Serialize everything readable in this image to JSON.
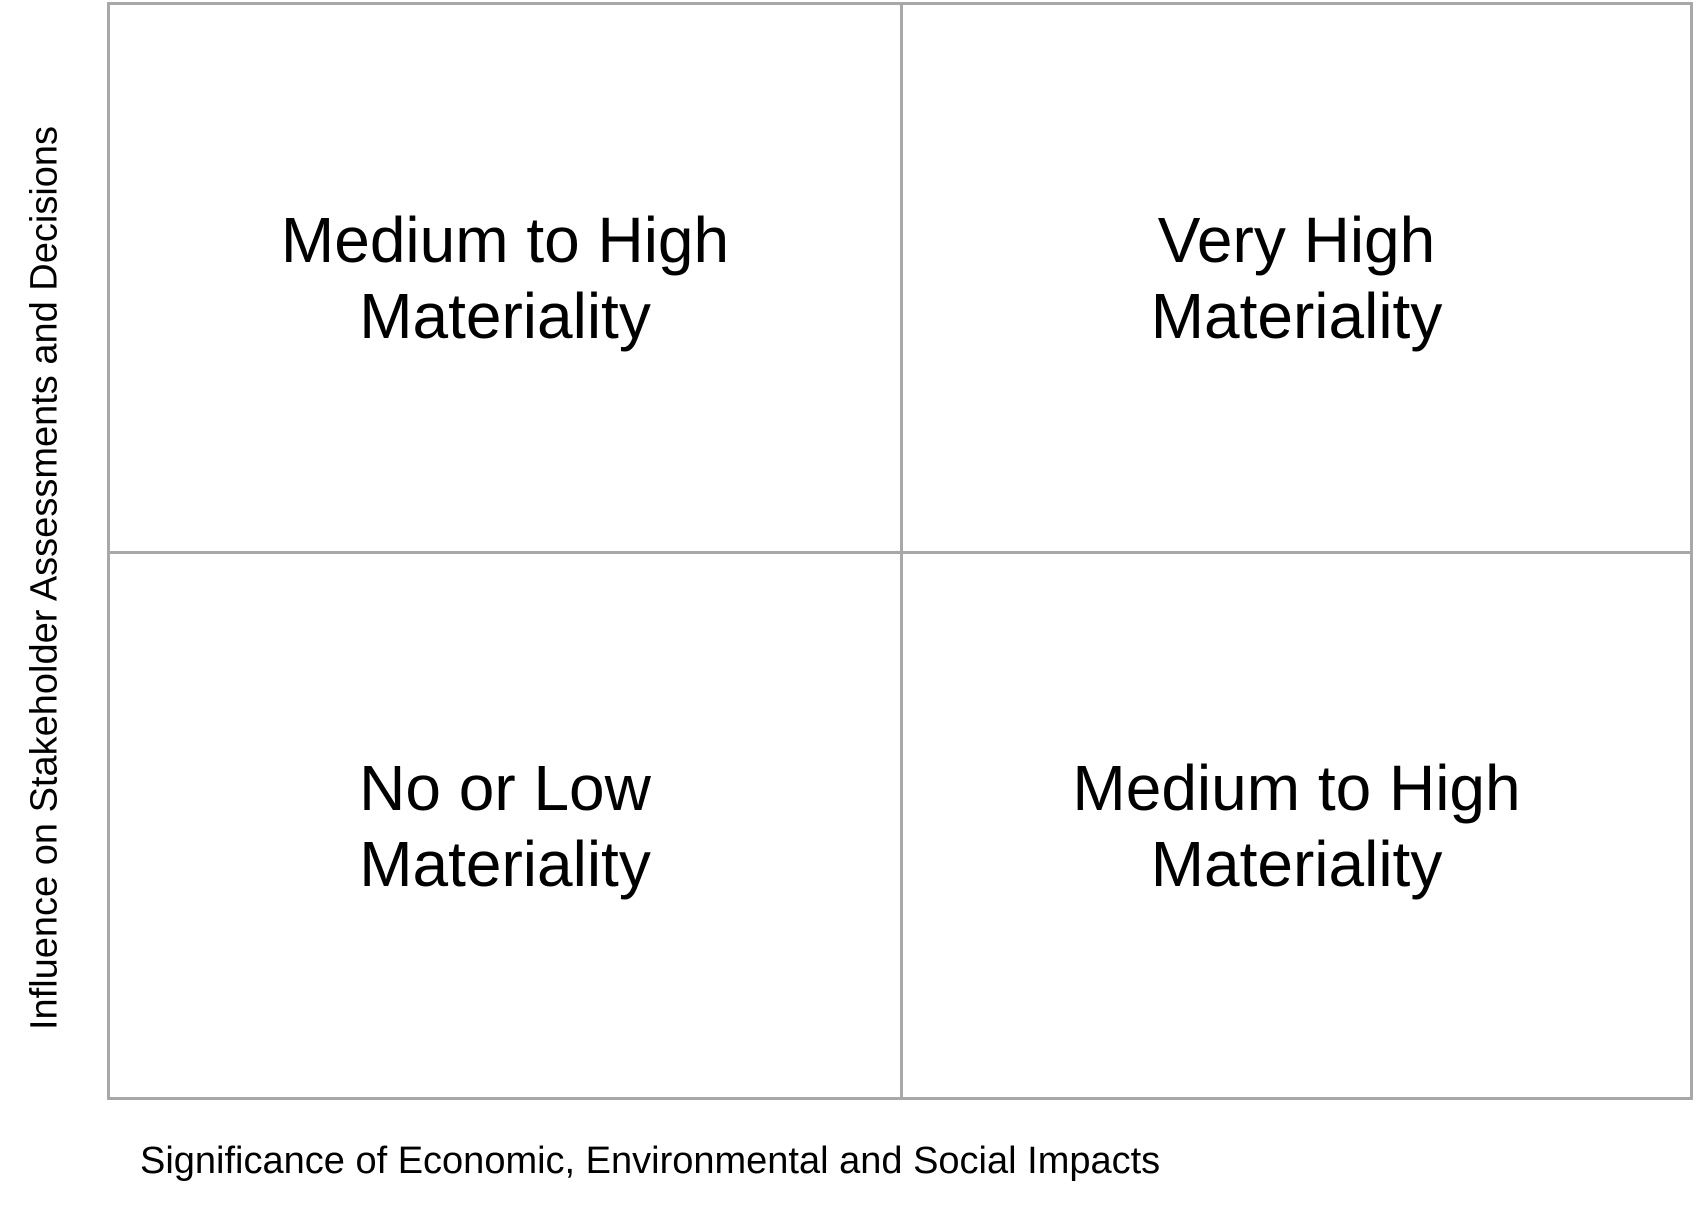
{
  "matrix": {
    "colors": {
      "grid_line": "#a8a8a8",
      "text": "#000000",
      "background": "#ffffff"
    },
    "quadrants": {
      "top_left": {
        "label": "Medium to High\nMateriality"
      },
      "top_right": {
        "label": "Very High\nMateriality"
      },
      "bottom_left": {
        "label": "No or Low\nMateriality"
      },
      "bottom_right": {
        "label": "Medium to High\nMateriality"
      }
    }
  },
  "axes": {
    "y_label": "Influence on Stakeholder Assessments and Decisions",
    "x_label": "Significance of Economic, Environmental and Social Impacts"
  }
}
